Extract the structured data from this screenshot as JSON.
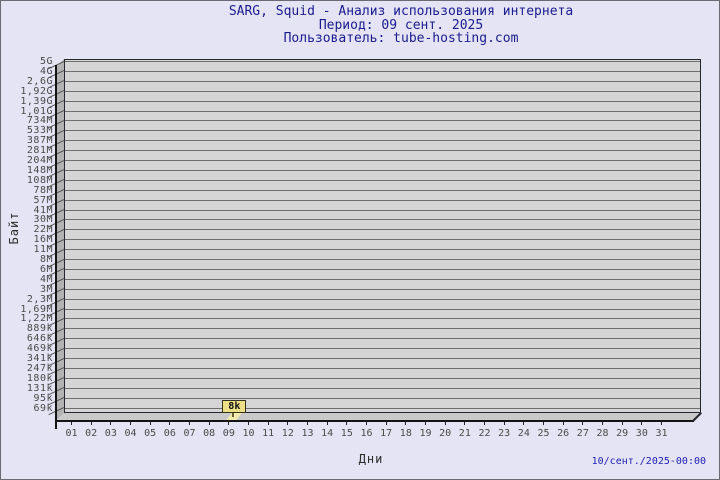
{
  "header": {
    "title": "SARG, Squid - Анализ использования интернета",
    "period": "Период: 09 сент. 2025",
    "user": "Пользователь: tube-hosting.com"
  },
  "chart_data": {
    "type": "bar",
    "title": "SARG, Squid - Анализ использования интернета",
    "subtitle": "Период: 09 сент. 2025",
    "user_line": "Пользователь: tube-hosting.com",
    "xlabel": "Дни",
    "ylabel": "Байт",
    "x_categories": [
      "01",
      "02",
      "03",
      "04",
      "05",
      "06",
      "07",
      "08",
      "09",
      "10",
      "11",
      "12",
      "13",
      "14",
      "15",
      "16",
      "17",
      "18",
      "19",
      "20",
      "21",
      "22",
      "23",
      "24",
      "25",
      "26",
      "27",
      "28",
      "29",
      "30",
      "31"
    ],
    "y_tick_labels": [
      "5G",
      "4G",
      "2,6G",
      "1,92G",
      "1,39G",
      "1,01G",
      "734M",
      "533M",
      "387M",
      "281M",
      "204M",
      "148M",
      "108M",
      "78M",
      "57M",
      "41M",
      "30M",
      "22M",
      "16M",
      "11M",
      "8M",
      "6M",
      "4M",
      "3M",
      "2,3M",
      "1,69M",
      "1,22M",
      "889k",
      "646k",
      "469k",
      "341k",
      "247k",
      "180k",
      "131k",
      "95k",
      "69k"
    ],
    "y_axis_scale": "log",
    "values_bytes": [
      0,
      0,
      0,
      0,
      0,
      0,
      0,
      0,
      8000,
      0,
      0,
      0,
      0,
      0,
      0,
      0,
      0,
      0,
      0,
      0,
      0,
      0,
      0,
      0,
      0,
      0,
      0,
      0,
      0,
      0,
      0
    ],
    "annotations": [
      {
        "day": "09",
        "label": "8k",
        "value_bytes": 8000
      }
    ],
    "legend": null,
    "grid": true,
    "colors": {
      "background": "#e4e4f4",
      "plot_background": "#d5d5d5",
      "left_wall": "#b3b3b3",
      "gridline": "#6f6f6f",
      "bar": "#f2ecae",
      "callout_background": "#ecdf86",
      "title_text": "#1b1b8e",
      "timestamp_text": "#2121b5",
      "axis_text": "#4a4a4a"
    }
  },
  "footer": {
    "generated": "10/сент./2025-00:00"
  }
}
